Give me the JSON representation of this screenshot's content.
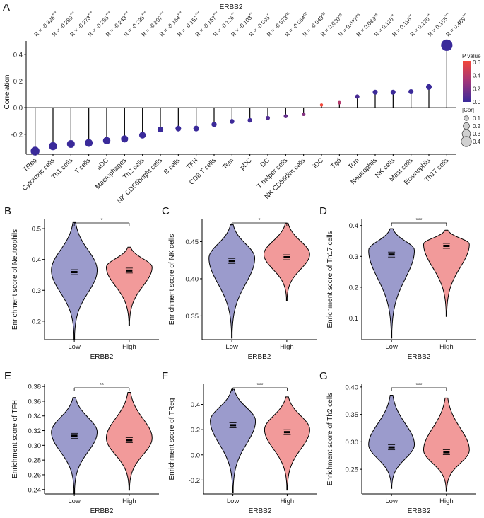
{
  "colors": {
    "low": "#9b9bcc",
    "high": "#f29a9a",
    "lollipop_dot_low_p": "#3b2f9c",
    "lollipop_dot_high_p": "#e0463a",
    "line": "#000000"
  },
  "chart_data": [
    {
      "panel": "A",
      "type": "lollipop",
      "title": "ERBB2",
      "ylabel": "Correlation",
      "ylim": [
        -0.35,
        0.5
      ],
      "yticks": [
        "0.4",
        "0.2",
        "0.0",
        "-0.2"
      ],
      "ytick_values": [
        0.4,
        0.2,
        0.0,
        -0.2
      ],
      "categories": [
        "TReg",
        "Cytotoxic cells",
        "Th1 cells",
        "T cells",
        "aDC",
        "Macrophages",
        "Th2 cells",
        "NK CD56bright cells",
        "B cells",
        "TFH",
        "CD8 T cells",
        "Tem",
        "pDC",
        "DC",
        "T helper cells",
        "NK CD56dim cells",
        "iDC",
        "Tgd",
        "Tcm",
        "Neutrophils",
        "NK cells",
        "Mast cells",
        "Eosinophils",
        "Th17 cells"
      ],
      "values": [
        -0.326,
        -0.289,
        -0.273,
        -0.265,
        -0.248,
        -0.235,
        -0.207,
        -0.164,
        -0.157,
        -0.157,
        -0.126,
        -0.103,
        -0.095,
        -0.078,
        -0.064,
        -0.049,
        0.02,
        0.037,
        0.083,
        0.116,
        0.116,
        0.12,
        0.155,
        0.469
      ],
      "r_labels": [
        "R = -0.326",
        "R = -0.289",
        "R = -0.273",
        "R = -0.265",
        "R = -0.248",
        "R = -0.235",
        "R = -0.207",
        "R = -0.164",
        "R = -0.157",
        "R = -0.157",
        "R = -0.126",
        "R = -0.103",
        "R = -0.095",
        "R = -0.078",
        "R = -0.064",
        "R = -0.049",
        "R = 0.020",
        "R = 0.037",
        "R = 0.083",
        "R = 0.116",
        "R = 0.116",
        "R = 0.120",
        "R = 0.155",
        "R = 0.469"
      ],
      "significance": [
        "***",
        "***",
        "***",
        "***",
        "***",
        "***",
        "***",
        "***",
        "***",
        "***",
        "**",
        "**",
        "*",
        "ns",
        "ns",
        "ns",
        "ns",
        "ns",
        "ns",
        "**",
        "**",
        "**",
        "***",
        "***"
      ],
      "p_values": [
        0.0,
        0.0,
        0.0,
        0.0,
        0.0,
        0.0,
        0.0,
        0.0,
        0.0,
        0.0,
        0.005,
        0.01,
        0.02,
        0.07,
        0.13,
        0.23,
        0.62,
        0.38,
        0.05,
        0.005,
        0.005,
        0.004,
        0.0,
        0.0
      ],
      "legend_pvalue_title": "P value",
      "legend_pvalue_ticks": [
        "0.6",
        "0.4",
        "0.2",
        "0.0"
      ],
      "legend_pvalue_tick_values": [
        0.6,
        0.4,
        0.2,
        0.0
      ],
      "legend_size_title": "|Cor|",
      "legend_size_items": [
        "0.1",
        "0.2",
        "0.3",
        "0.4"
      ],
      "legend_size_values": [
        0.1,
        0.2,
        0.3,
        0.4
      ]
    },
    {
      "panel": "B",
      "type": "violin",
      "ylabel": "Enrichment score of Neutrophils",
      "xlabel": "ERBB2",
      "categories": [
        "Low",
        "High"
      ],
      "ylim": [
        0.14,
        0.53
      ],
      "yticks": [
        "0.5",
        "0.4",
        "0.3",
        "0.2"
      ],
      "ytick_values": [
        0.5,
        0.4,
        0.3,
        0.2
      ],
      "means": [
        0.359,
        0.364
      ],
      "significance": "*",
      "range_low": [
        0.14,
        0.52
      ],
      "range_high": [
        0.185,
        0.44
      ],
      "mode_low": 0.365,
      "mode_high": 0.375
    },
    {
      "panel": "C",
      "type": "violin",
      "ylabel": "Enrichment score of NK cells",
      "xlabel": "ERBB2",
      "categories": [
        "Low",
        "High"
      ],
      "ylim": [
        0.318,
        0.48
      ],
      "yticks": [
        "0.45",
        "0.40",
        "0.35"
      ],
      "ytick_values": [
        0.45,
        0.4,
        0.35
      ],
      "means": [
        0.424,
        0.429
      ],
      "significance": "*",
      "range_low": [
        0.32,
        0.473
      ],
      "range_high": [
        0.37,
        0.475
      ],
      "mode_low": 0.428,
      "mode_high": 0.433
    },
    {
      "panel": "D",
      "type": "violin",
      "ylabel": "Enrichment score of Th17 cells",
      "xlabel": "ERBB2",
      "categories": [
        "Low",
        "High"
      ],
      "ylim": [
        0.03,
        0.42
      ],
      "yticks": [
        "0.4",
        "0.3",
        "0.2",
        "0.1"
      ],
      "ytick_values": [
        0.4,
        0.3,
        0.2,
        0.1
      ],
      "means": [
        0.306,
        0.334
      ],
      "significance": "***",
      "range_low": [
        0.035,
        0.39
      ],
      "range_high": [
        0.105,
        0.385
      ],
      "mode_low": 0.32,
      "mode_high": 0.34
    },
    {
      "panel": "E",
      "type": "violin",
      "ylabel": "Enrichment score of TFH",
      "xlabel": "ERBB2",
      "categories": [
        "Low",
        "High"
      ],
      "ylim": [
        0.234,
        0.383
      ],
      "yticks": [
        "0.38",
        "0.36",
        "0.34",
        "0.32",
        "0.30",
        "0.28",
        "0.26",
        "0.24"
      ],
      "ytick_values": [
        0.38,
        0.36,
        0.34,
        0.32,
        0.3,
        0.28,
        0.26,
        0.24
      ],
      "means": [
        0.313,
        0.307
      ],
      "significance": "**",
      "range_low": [
        0.235,
        0.365
      ],
      "range_high": [
        0.239,
        0.372
      ],
      "mode_low": 0.318,
      "mode_high": 0.31
    },
    {
      "panel": "F",
      "type": "violin",
      "ylabel": "Enrichment score of TReg",
      "xlabel": "ERBB2",
      "categories": [
        "Low",
        "High"
      ],
      "ylim": [
        -0.31,
        0.56
      ],
      "yticks": [
        "0.4",
        "0.2",
        "0.0",
        "-0.2"
      ],
      "ytick_values": [
        0.4,
        0.2,
        0.0,
        -0.2
      ],
      "means": [
        0.235,
        0.18
      ],
      "significance": "***",
      "range_low": [
        -0.3,
        0.52
      ],
      "range_high": [
        -0.28,
        0.46
      ],
      "mode_low": 0.27,
      "mode_high": 0.2
    },
    {
      "panel": "G",
      "type": "violin",
      "ylabel": "Enrichment score of Th2 cells",
      "xlabel": "ERBB2",
      "categories": [
        "Low",
        "High"
      ],
      "ylim": [
        0.205,
        0.405
      ],
      "yticks": [
        "0.40",
        "0.35",
        "0.30",
        "0.25"
      ],
      "ytick_values": [
        0.4,
        0.35,
        0.3,
        0.25
      ],
      "means": [
        0.29,
        0.281
      ],
      "significance": "***",
      "range_low": [
        0.215,
        0.385
      ],
      "range_high": [
        0.21,
        0.38
      ],
      "mode_low": 0.295,
      "mode_high": 0.285
    }
  ]
}
